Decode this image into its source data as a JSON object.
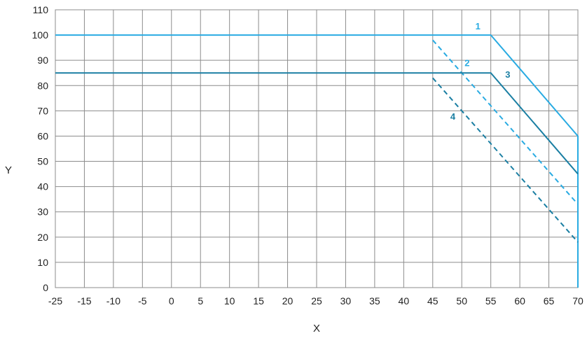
{
  "chart_data": {
    "type": "line",
    "xlabel": "X",
    "ylabel": "Y",
    "x_ticks": [
      -25,
      -15,
      -10,
      -5,
      0,
      5,
      10,
      15,
      20,
      25,
      30,
      35,
      40,
      45,
      50,
      55,
      60,
      65,
      70
    ],
    "x_tick_labels": [
      "-25",
      "-15",
      "-10",
      "-5",
      "0",
      "5",
      "10",
      "15",
      "20",
      "25",
      "30",
      "35",
      "40",
      "45",
      "50",
      "55",
      "60",
      "65",
      "70"
    ],
    "y_ticks": [
      0,
      10,
      20,
      30,
      40,
      50,
      60,
      70,
      80,
      90,
      100,
      110
    ],
    "y_tick_labels": [
      "0",
      "10",
      "20",
      "30",
      "40",
      "50",
      "60",
      "70",
      "80",
      "90",
      "100",
      "110"
    ],
    "ylim": [
      0,
      110
    ],
    "grid": true,
    "series": [
      {
        "name": "1",
        "color": "#29abe2",
        "style": "solid",
        "points": [
          [
            -25,
            100
          ],
          [
            55,
            100
          ],
          [
            70,
            60
          ],
          [
            70,
            0
          ]
        ]
      },
      {
        "name": "2",
        "color": "#29abe2",
        "style": "dashed",
        "points": [
          [
            45,
            98
          ],
          [
            70,
            33
          ]
        ]
      },
      {
        "name": "3",
        "color": "#1b7fa3",
        "style": "solid",
        "points": [
          [
            -25,
            85
          ],
          [
            55,
            85
          ],
          [
            70,
            45
          ]
        ]
      },
      {
        "name": "4",
        "color": "#1b7fa3",
        "style": "dashed",
        "points": [
          [
            45,
            83
          ],
          [
            70,
            18
          ]
        ]
      }
    ]
  }
}
